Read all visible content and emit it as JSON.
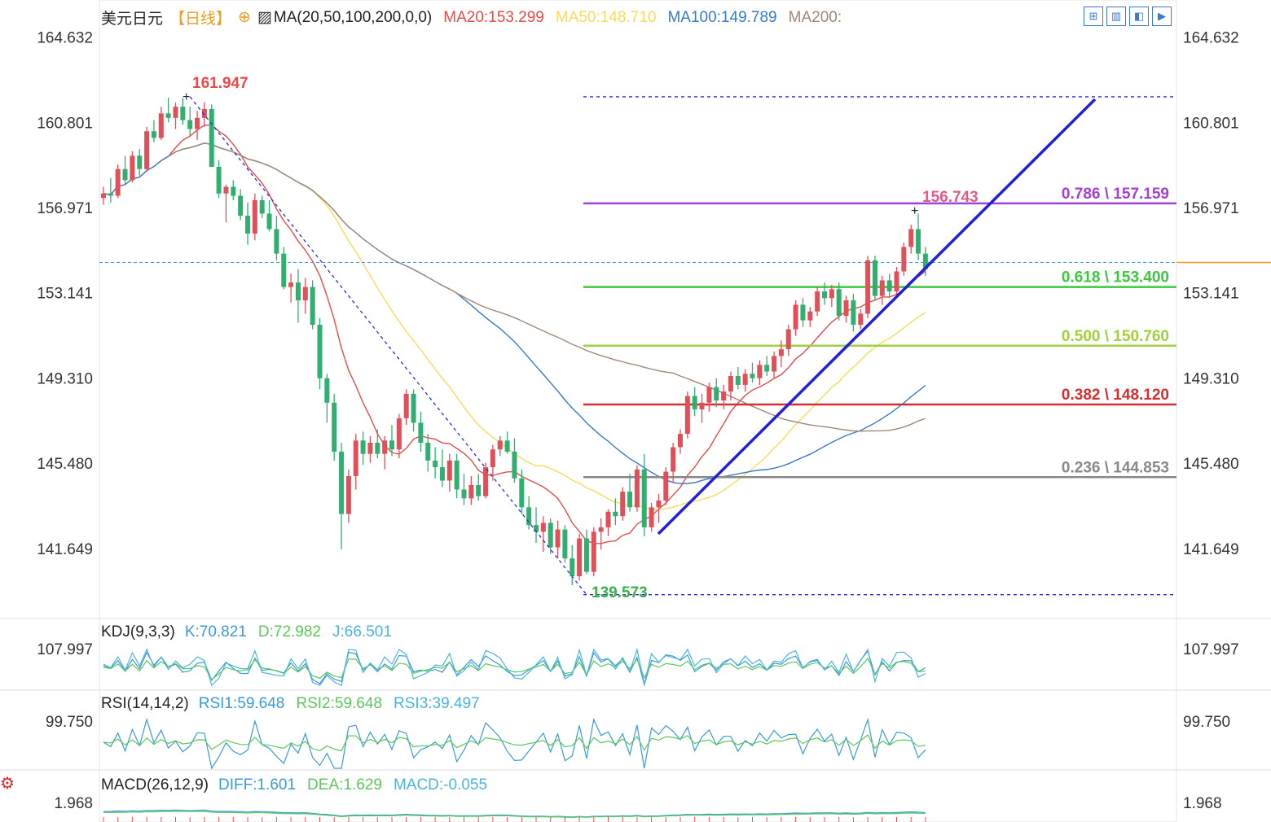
{
  "header": {
    "symbol": "美元日元",
    "period": "【日线】",
    "indicator": "MA(20,50,100,200,0,0)",
    "ma_values": [
      {
        "label": "MA20:153.299",
        "color": "#e84a4a"
      },
      {
        "label": "MA50:148.710",
        "color": "#f5dc5a"
      },
      {
        "label": "MA100:149.789",
        "color": "#3a78c8"
      },
      {
        "label": "MA200:",
        "color": "#a08878"
      }
    ]
  },
  "toolbar": {
    "buttons": [
      {
        "name": "grid-layout",
        "glyph": "⊞"
      },
      {
        "name": "chart-layout",
        "glyph": "▥"
      },
      {
        "name": "play-back",
        "glyph": "◧"
      },
      {
        "name": "forward",
        "glyph": "▶"
      }
    ]
  },
  "chart_data": {
    "type": "candlestick",
    "main": {
      "y_ticks": [
        "164.632",
        "160.801",
        "156.971",
        "153.141",
        "149.310",
        "145.480",
        "141.649"
      ],
      "ylim": [
        138.5,
        165.2
      ],
      "high_label": "161.947",
      "low_label": "139.573",
      "recent_high_label": "156.743",
      "dashed_level": 154.5,
      "candles": [
        [
          157.4,
          157.9,
          157.1,
          157.6
        ],
        [
          157.6,
          158.3,
          157.2,
          157.5
        ],
        [
          157.5,
          158.9,
          157.4,
          158.7
        ],
        [
          158.7,
          159.3,
          158.0,
          158.2
        ],
        [
          158.2,
          159.5,
          158.1,
          159.3
        ],
        [
          159.3,
          159.6,
          158.4,
          158.7
        ],
        [
          158.7,
          160.6,
          158.6,
          160.4
        ],
        [
          160.4,
          160.9,
          159.9,
          160.1
        ],
        [
          160.1,
          161.5,
          160.0,
          161.2
        ],
        [
          161.2,
          161.9,
          160.8,
          161.0
        ],
        [
          161.0,
          161.7,
          160.5,
          161.5
        ],
        [
          161.5,
          161.9,
          160.7,
          160.9
        ],
        [
          160.9,
          161.5,
          160.2,
          160.5
        ],
        [
          160.5,
          161.3,
          160.0,
          161.0
        ],
        [
          161.0,
          161.7,
          160.6,
          161.4
        ],
        [
          161.4,
          161.6,
          159.0,
          158.8
        ],
        [
          158.8,
          159.1,
          157.4,
          157.6
        ],
        [
          157.6,
          158.0,
          156.3,
          157.9
        ],
        [
          157.9,
          158.2,
          157.3,
          157.5
        ],
        [
          157.5,
          157.8,
          156.4,
          156.6
        ],
        [
          156.6,
          157.2,
          155.3,
          155.8
        ],
        [
          155.8,
          157.6,
          155.5,
          157.3
        ],
        [
          157.3,
          157.5,
          156.5,
          156.7
        ],
        [
          156.7,
          157.3,
          155.9,
          156.0
        ],
        [
          156.0,
          156.6,
          154.6,
          154.9
        ],
        [
          154.9,
          155.2,
          153.3,
          153.4
        ],
        [
          153.4,
          154.0,
          152.7,
          153.6
        ],
        [
          153.6,
          154.2,
          151.8,
          152.8
        ],
        [
          152.8,
          153.8,
          152.2,
          153.4
        ],
        [
          153.4,
          153.7,
          151.5,
          151.7
        ],
        [
          151.7,
          152.0,
          148.8,
          149.3
        ],
        [
          149.3,
          149.5,
          147.3,
          148.2
        ],
        [
          148.2,
          148.6,
          145.6,
          146.0
        ],
        [
          146.0,
          146.4,
          141.6,
          143.2
        ],
        [
          143.2,
          145.2,
          142.8,
          144.9
        ],
        [
          144.9,
          146.8,
          144.3,
          146.5
        ],
        [
          146.5,
          146.9,
          145.4,
          145.9
        ],
        [
          145.9,
          146.7,
          145.5,
          146.4
        ],
        [
          146.4,
          147.0,
          145.7,
          145.9
        ],
        [
          145.9,
          146.7,
          145.2,
          146.5
        ],
        [
          146.5,
          147.2,
          145.8,
          146.1
        ],
        [
          146.1,
          147.7,
          145.7,
          147.5
        ],
        [
          147.5,
          148.8,
          147.2,
          148.6
        ],
        [
          148.6,
          148.8,
          146.9,
          147.3
        ],
        [
          147.3,
          147.8,
          146.0,
          146.4
        ],
        [
          146.4,
          146.8,
          145.1,
          145.6
        ],
        [
          145.6,
          146.2,
          144.8,
          145.3
        ],
        [
          145.3,
          146.1,
          144.4,
          144.7
        ],
        [
          144.7,
          145.9,
          144.2,
          145.6
        ],
        [
          145.6,
          145.9,
          143.9,
          144.3
        ],
        [
          144.3,
          145.0,
          143.6,
          143.9
        ],
        [
          143.9,
          144.9,
          143.6,
          144.5
        ],
        [
          144.5,
          145.0,
          143.8,
          144.0
        ],
        [
          144.0,
          145.5,
          143.9,
          145.3
        ],
        [
          145.3,
          146.3,
          144.7,
          146.1
        ],
        [
          146.1,
          146.7,
          145.8,
          146.5
        ],
        [
          146.5,
          146.9,
          145.9,
          146.0
        ],
        [
          146.0,
          146.6,
          144.6,
          144.8
        ],
        [
          144.8,
          145.2,
          143.2,
          143.5
        ],
        [
          143.5,
          144.0,
          142.5,
          142.7
        ],
        [
          142.7,
          143.5,
          141.9,
          142.4
        ],
        [
          142.4,
          143.1,
          141.5,
          142.8
        ],
        [
          142.8,
          143.0,
          141.4,
          141.7
        ],
        [
          141.7,
          142.9,
          141.2,
          142.5
        ],
        [
          142.5,
          142.7,
          141.0,
          141.2
        ],
        [
          141.2,
          141.8,
          140.0,
          140.4
        ],
        [
          140.4,
          142.3,
          140.2,
          142.1
        ],
        [
          142.1,
          142.5,
          140.5,
          140.6
        ],
        [
          140.6,
          142.6,
          140.4,
          142.4
        ],
        [
          142.4,
          143.0,
          141.6,
          142.6
        ],
        [
          142.6,
          143.4,
          142.2,
          143.3
        ],
        [
          143.3,
          143.9,
          142.7,
          143.1
        ],
        [
          143.1,
          144.4,
          142.9,
          144.2
        ],
        [
          144.2,
          145.0,
          143.3,
          143.5
        ],
        [
          143.5,
          145.4,
          143.3,
          145.2
        ],
        [
          145.2,
          145.9,
          142.2,
          142.6
        ],
        [
          142.6,
          143.7,
          142.4,
          143.5
        ],
        [
          143.5,
          144.1,
          142.8,
          143.8
        ],
        [
          143.8,
          145.3,
          143.6,
          145.1
        ],
        [
          145.1,
          146.4,
          144.6,
          146.2
        ],
        [
          146.2,
          147.0,
          145.9,
          146.8
        ],
        [
          146.8,
          148.7,
          146.6,
          148.5
        ],
        [
          148.5,
          148.9,
          147.6,
          147.9
        ],
        [
          147.9,
          148.6,
          147.3,
          148.2
        ],
        [
          148.2,
          149.1,
          147.8,
          148.9
        ],
        [
          148.9,
          149.3,
          148.0,
          148.3
        ],
        [
          148.3,
          149.0,
          147.9,
          148.7
        ],
        [
          148.7,
          149.6,
          148.3,
          149.4
        ],
        [
          149.4,
          149.8,
          148.8,
          149.0
        ],
        [
          149.0,
          149.7,
          148.7,
          149.5
        ],
        [
          149.5,
          150.0,
          149.1,
          149.3
        ],
        [
          149.3,
          150.1,
          149.0,
          149.9
        ],
        [
          149.9,
          150.3,
          149.4,
          149.6
        ],
        [
          149.6,
          150.5,
          149.3,
          150.3
        ],
        [
          150.3,
          151.0,
          149.8,
          150.6
        ],
        [
          150.6,
          151.7,
          150.3,
          151.5
        ],
        [
          151.5,
          152.8,
          151.2,
          152.6
        ],
        [
          152.6,
          152.9,
          151.6,
          151.9
        ],
        [
          151.9,
          152.5,
          151.6,
          152.3
        ],
        [
          152.3,
          153.4,
          152.1,
          153.2
        ],
        [
          153.2,
          153.6,
          152.6,
          152.9
        ],
        [
          152.9,
          153.5,
          152.5,
          153.3
        ],
        [
          153.3,
          153.6,
          151.9,
          152.1
        ],
        [
          152.1,
          153.0,
          151.8,
          152.8
        ],
        [
          152.8,
          153.1,
          151.4,
          151.7
        ],
        [
          151.7,
          152.4,
          151.5,
          152.2
        ],
        [
          152.2,
          154.8,
          152.0,
          154.6
        ],
        [
          154.6,
          154.8,
          152.8,
          153.0
        ],
        [
          153.0,
          153.9,
          152.6,
          153.7
        ],
        [
          153.7,
          154.0,
          152.9,
          153.2
        ],
        [
          153.2,
          154.3,
          153.0,
          154.1
        ],
        [
          154.1,
          155.4,
          153.9,
          155.2
        ],
        [
          155.2,
          156.2,
          154.9,
          156.0
        ],
        [
          156.0,
          156.7,
          154.6,
          154.9
        ],
        [
          154.9,
          155.2,
          153.9,
          154.2
        ]
      ]
    },
    "fib_levels": [
      {
        "ratio": "0.786",
        "price": "157.159",
        "value": 157.159,
        "color": "#a23fd6",
        "label": "0.786 \\ 157.159"
      },
      {
        "ratio": "0.618",
        "price": "153.400",
        "value": 153.4,
        "color": "#3cc83c",
        "label": "0.618 \\ 153.400"
      },
      {
        "ratio": "0.500",
        "price": "150.760",
        "value": 150.76,
        "color": "#9ed23c",
        "label": "0.500 \\ 150.760"
      },
      {
        "ratio": "0.382",
        "price": "148.120",
        "value": 148.12,
        "color": "#d22f2f",
        "label": "0.382 \\ 148.120"
      },
      {
        "ratio": "0.236",
        "price": "144.853",
        "value": 144.853,
        "color": "#888888",
        "label": "0.236 \\ 144.853"
      }
    ],
    "fib_top": 161.947,
    "fib_bottom": 139.573,
    "kdj": {
      "title": "KDJ(9,3,3)",
      "values": [
        {
          "label": "K:70.821",
          "color": "#3a9ad6"
        },
        {
          "label": "D:72.982",
          "color": "#5ac85a"
        },
        {
          "label": "J:66.501",
          "color": "#4ab4e0"
        }
      ],
      "tick": "107.997"
    },
    "rsi": {
      "title": "RSI(14,14,2)",
      "values": [
        {
          "label": "RSI1:59.648",
          "color": "#3a9ad6"
        },
        {
          "label": "RSI2:59.648",
          "color": "#5ac85a"
        },
        {
          "label": "RSI3:39.497",
          "color": "#4ab4e0"
        }
      ],
      "tick": "99.750"
    },
    "macd": {
      "title": "MACD(26,12,9)",
      "values": [
        {
          "label": "DIFF:1.601",
          "color": "#3a9ad6"
        },
        {
          "label": "DEA:1.629",
          "color": "#5ac85a"
        },
        {
          "label": "MACD:-0.055",
          "color": "#4ab4e0"
        }
      ],
      "tick": "1.968"
    }
  }
}
